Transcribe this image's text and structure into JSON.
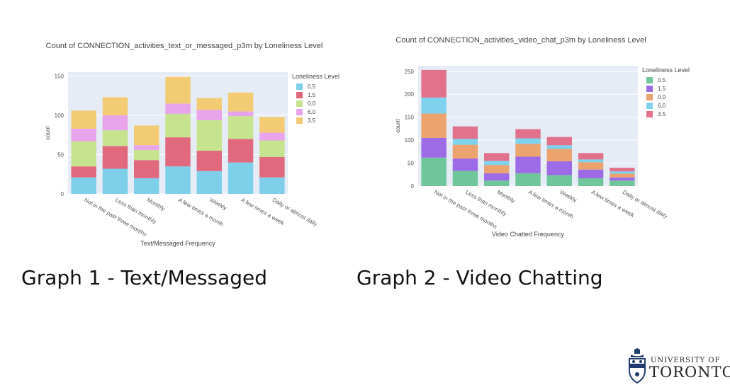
{
  "captions": {
    "graph1": "Graph 1 - Text/Messaged",
    "graph2": "Graph 2 - Video Chatting"
  },
  "logo": {
    "line1": "UNIVERSITY OF",
    "line2": "TORONTO"
  },
  "chart_data": [
    {
      "type": "bar",
      "stacked": true,
      "title": "Count of CONNECTION_activities_text_or_messaged_p3m by Loneliness Level",
      "xlabel": "Text/Messaged Frequency",
      "ylabel": "count",
      "ylim": [
        0,
        155
      ],
      "yticks": [
        0,
        50,
        100,
        150
      ],
      "grid": true,
      "legend_title": "Loneliness Level",
      "legend_position": "right",
      "categories": [
        "Not in the past three months",
        "Less than monthly",
        "Monthly",
        "A few times a month",
        "Weekly",
        "A few times a week",
        "Daily or almost daily"
      ],
      "series": [
        {
          "name": "0.5",
          "color": "#7ecfea",
          "values": [
            21,
            32,
            20,
            35,
            29,
            40,
            21
          ]
        },
        {
          "name": "1.5",
          "color": "#e0697e",
          "values": [
            14,
            29,
            23,
            37,
            26,
            30,
            26
          ]
        },
        {
          "name": "0.0",
          "color": "#c6e38e",
          "values": [
            32,
            20,
            13,
            30,
            39,
            29,
            21
          ]
        },
        {
          "name": "6.0",
          "color": "#e8a3ea",
          "values": [
            16,
            19,
            6,
            13,
            13,
            6,
            10
          ]
        },
        {
          "name": "3.5",
          "color": "#f3cb73",
          "values": [
            23,
            23,
            25,
            34,
            15,
            24,
            20
          ]
        }
      ]
    },
    {
      "type": "bar",
      "stacked": true,
      "title": "Count of CONNECTION_activities_video_chat_p3m by Loneliness Level",
      "xlabel": "Video Chatted Frequency",
      "ylabel": "count",
      "ylim": [
        0,
        262
      ],
      "yticks": [
        0,
        50,
        100,
        150,
        200,
        250
      ],
      "grid": true,
      "legend_title": "Loneliness Level",
      "legend_position": "right",
      "categories": [
        "Not in the past three months",
        "Less than monthly",
        "Monthly",
        "A few times a month",
        "Weekly",
        "A few times a week",
        "Daily or almost daily"
      ],
      "series": [
        {
          "name": "0.5",
          "color": "#6fc69a",
          "values": [
            62,
            33,
            12,
            28,
            24,
            17,
            12
          ]
        },
        {
          "name": "1.5",
          "color": "#9d6be6",
          "values": [
            43,
            27,
            16,
            36,
            30,
            19,
            7
          ]
        },
        {
          "name": "0.0",
          "color": "#eca36e",
          "values": [
            53,
            30,
            18,
            28,
            27,
            16,
            8
          ]
        },
        {
          "name": "6.0",
          "color": "#7ed2ee",
          "values": [
            35,
            13,
            9,
            12,
            8,
            6,
            5
          ]
        },
        {
          "name": "3.5",
          "color": "#e2728c",
          "values": [
            60,
            27,
            17,
            20,
            18,
            14,
            8
          ]
        }
      ]
    }
  ]
}
